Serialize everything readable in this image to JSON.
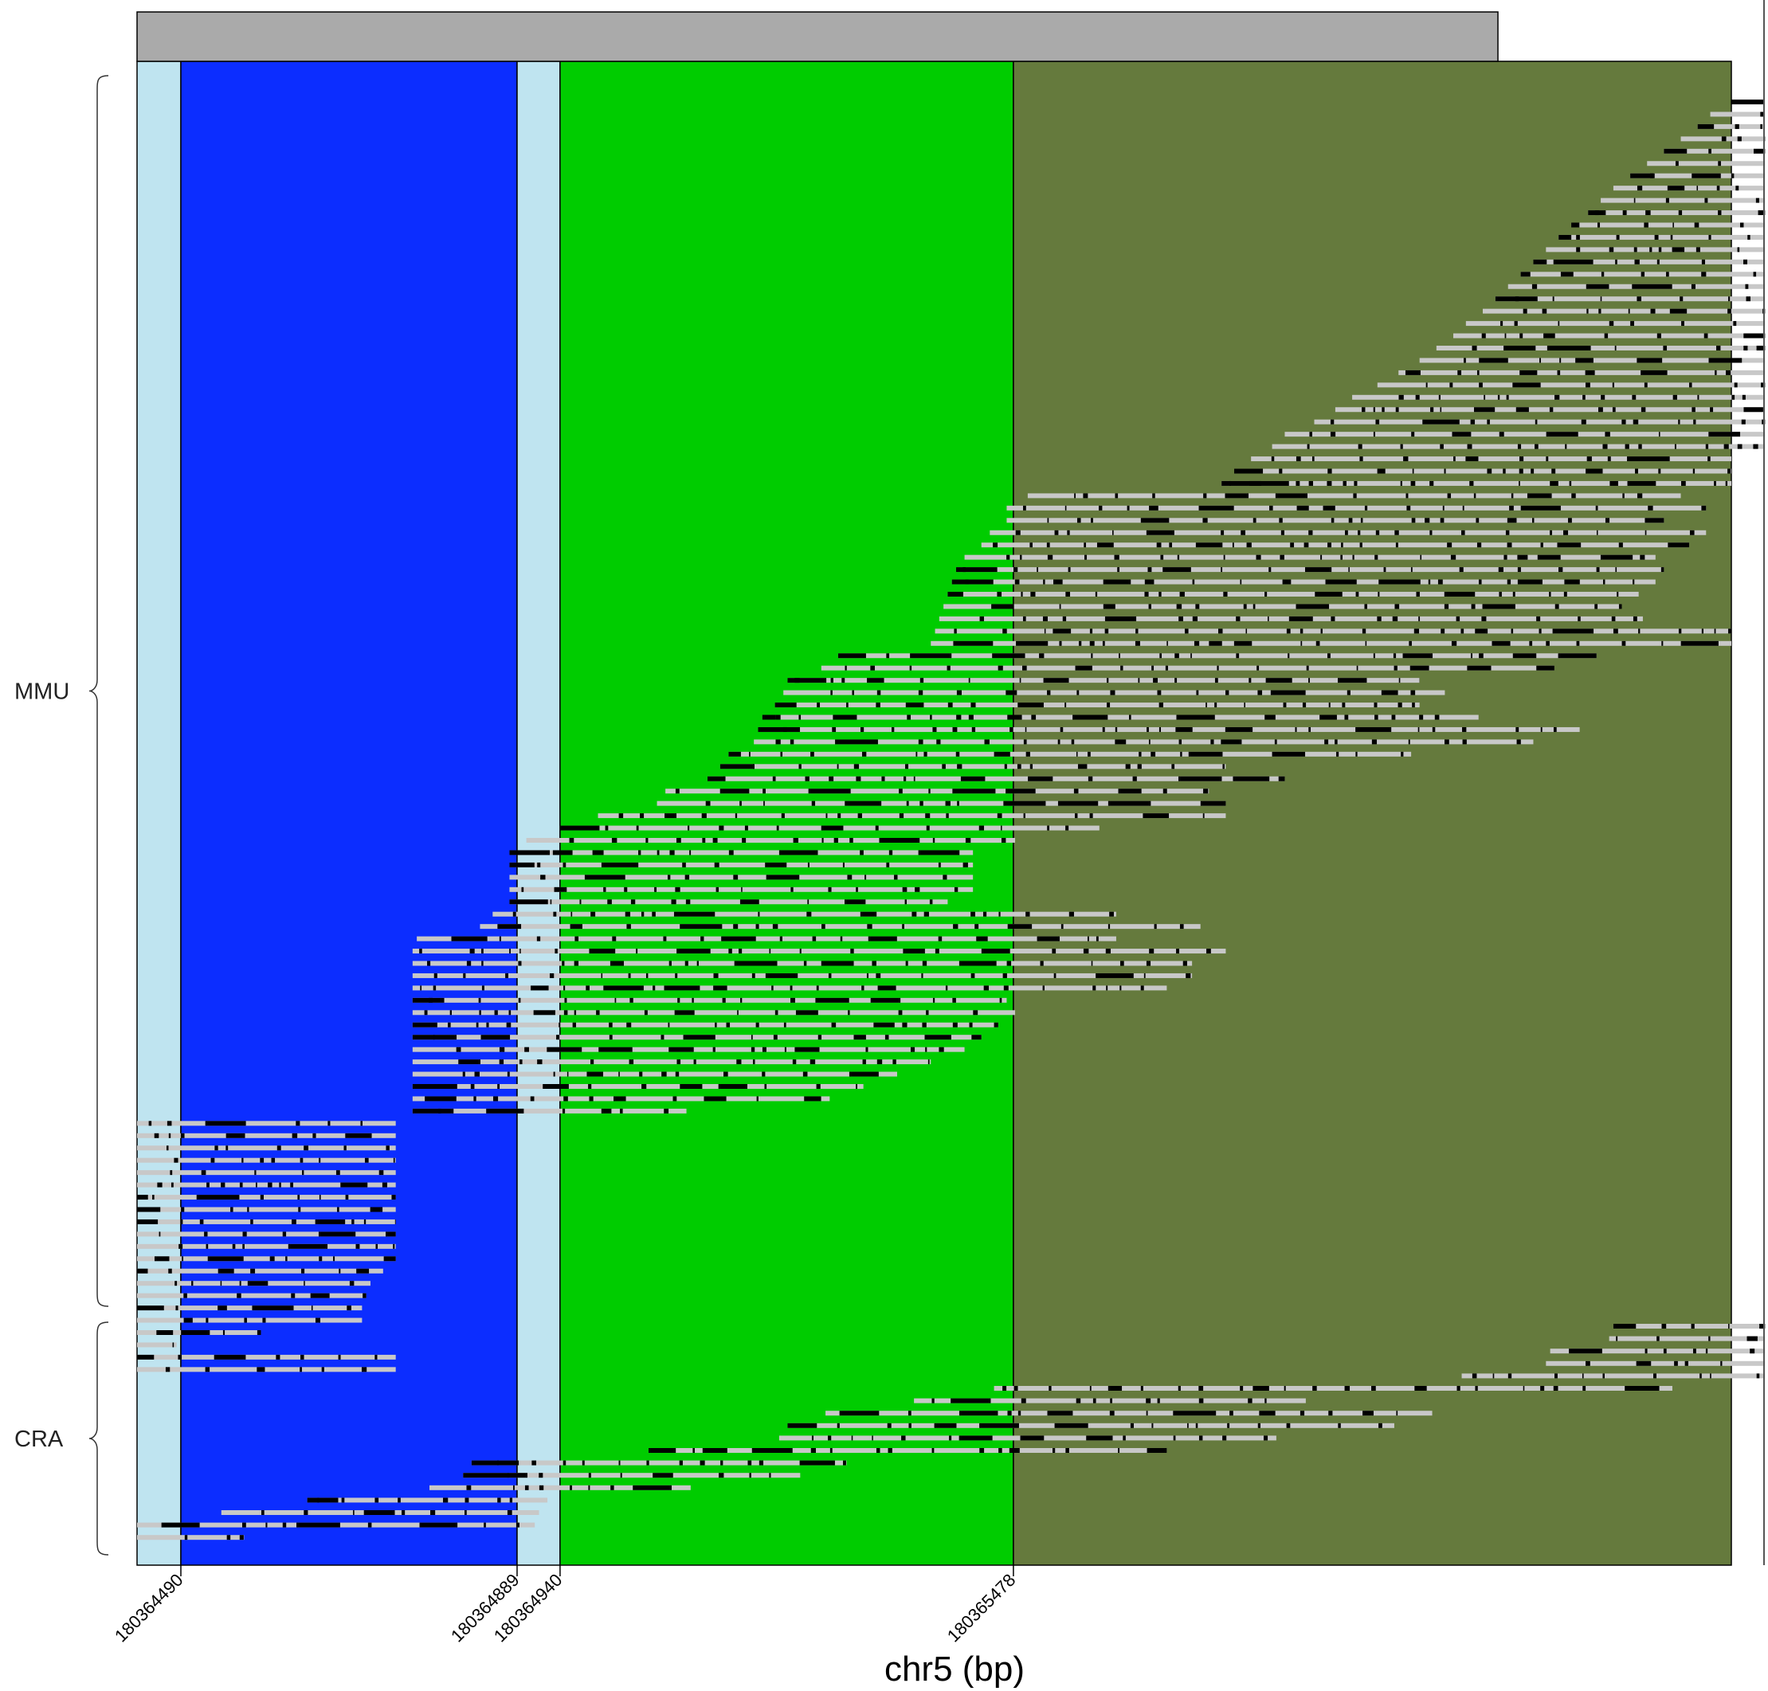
{
  "chart_data": {
    "type": "read-alignment-track",
    "xlabel": "chr5 (bp)",
    "xlim": [
      180364438,
      180366330
    ],
    "feature_bar_end": 180366053,
    "groups": [
      {
        "name": "MMU",
        "rows": 102
      },
      {
        "name": "CRA",
        "rows": 18
      }
    ],
    "regions": [
      {
        "start": 180364438,
        "end": 180364490,
        "color": "#bfe4f0"
      },
      {
        "start": 180364490,
        "end": 180364889,
        "color": "#0c2dff"
      },
      {
        "start": 180364889,
        "end": 180364940,
        "color": "#bfe4f0"
      },
      {
        "start": 180364940,
        "end": 180365478,
        "color": "#00cc00"
      },
      {
        "start": 180365478,
        "end": 180366330,
        "color": "#657a3d"
      }
    ],
    "ticks": [
      {
        "value": 180364490,
        "label": "180364490"
      },
      {
        "value": 180364889,
        "label": "180364889"
      },
      {
        "value": 180364940,
        "label": "180364940"
      },
      {
        "value": 180365478,
        "label": "180365478"
      }
    ],
    "read_colors": {
      "match": "#c8c8c8",
      "gap": "#000000"
    },
    "reads_mmu": [
      [
        180366330,
        180366370
      ],
      [
        180366305,
        180366370
      ],
      [
        180366290,
        180366370
      ],
      [
        180366270,
        180366370
      ],
      [
        180366250,
        180366370
      ],
      [
        180366230,
        180366370
      ],
      [
        180366210,
        180366370
      ],
      [
        180366190,
        180366370
      ],
      [
        180366175,
        180366370
      ],
      [
        180366160,
        180366370
      ],
      [
        180366140,
        180366370
      ],
      [
        180366125,
        180366370
      ],
      [
        180366110,
        180366370
      ],
      [
        180366095,
        180366370
      ],
      [
        180366080,
        180366370
      ],
      [
        180366065,
        180366370
      ],
      [
        180366050,
        180366370
      ],
      [
        180366035,
        180366370
      ],
      [
        180366015,
        180366370
      ],
      [
        180366000,
        180366370
      ],
      [
        180365980,
        180366370
      ],
      [
        180365960,
        180366370
      ],
      [
        180365935,
        180366370
      ],
      [
        180365910,
        180366370
      ],
      [
        180365880,
        180366370
      ],
      [
        180365860,
        180366370
      ],
      [
        180365835,
        180366370
      ],
      [
        180365800,
        180366370
      ],
      [
        180365785,
        180366370
      ],
      [
        180365760,
        180366330
      ],
      [
        180365740,
        180366330
      ],
      [
        180365725,
        180366330
      ],
      [
        180365495,
        180366270
      ],
      [
        180365470,
        180366300
      ],
      [
        180365470,
        180366250
      ],
      [
        180365450,
        180366300
      ],
      [
        180365440,
        180366280
      ],
      [
        180365420,
        180366240
      ],
      [
        180365410,
        180366250
      ],
      [
        180365405,
        180366240
      ],
      [
        180365400,
        180366220
      ],
      [
        180365395,
        180366200
      ],
      [
        180365390,
        180366225
      ],
      [
        180365385,
        180366330
      ],
      [
        180365380,
        180366330
      ],
      [
        180365270,
        180366170
      ],
      [
        180365250,
        180366120
      ],
      [
        180365210,
        180365960
      ],
      [
        180365205,
        180365990
      ],
      [
        180365195,
        180365960
      ],
      [
        180365180,
        180366030
      ],
      [
        180365175,
        180366150
      ],
      [
        180365170,
        180366095
      ],
      [
        180365140,
        180365950
      ],
      [
        180365130,
        180365730
      ],
      [
        180365115,
        180365800
      ],
      [
        180365065,
        180365710
      ],
      [
        180365055,
        180365730
      ],
      [
        180364985,
        180365730
      ],
      [
        180364940,
        180365580
      ],
      [
        180364900,
        180365480
      ],
      [
        180364880,
        180365430
      ],
      [
        180364880,
        180365430
      ],
      [
        180364880,
        180365430
      ],
      [
        180364880,
        180365430
      ],
      [
        180364880,
        180365400
      ],
      [
        180364860,
        180365600
      ],
      [
        180364845,
        180365700
      ],
      [
        180364770,
        180365600
      ],
      [
        180364765,
        180365730
      ],
      [
        180364765,
        180365690
      ],
      [
        180364765,
        180365690
      ],
      [
        180364765,
        180365660
      ],
      [
        180364765,
        180365470
      ],
      [
        180364765,
        180365480
      ],
      [
        180364765,
        180365460
      ],
      [
        180364765,
        180365440
      ],
      [
        180364765,
        180365420
      ],
      [
        180364765,
        180365380
      ],
      [
        180364765,
        180365340
      ],
      [
        180364765,
        180365300
      ],
      [
        180364765,
        180365260
      ],
      [
        180364765,
        180365090
      ],
      [
        180364438,
        180364745
      ],
      [
        180364438,
        180364745
      ],
      [
        180364438,
        180364745
      ],
      [
        180364438,
        180364745
      ],
      [
        180364438,
        180364745
      ],
      [
        180364438,
        180364745
      ],
      [
        180364438,
        180364745
      ],
      [
        180364438,
        180364745
      ],
      [
        180364438,
        180364745
      ],
      [
        180364438,
        180364745
      ],
      [
        180364438,
        180364745
      ],
      [
        180364438,
        180364745
      ],
      [
        180364438,
        180364730
      ],
      [
        180364438,
        180364715
      ],
      [
        180364438,
        180364710
      ],
      [
        180364438,
        180364705
      ],
      [
        180364438,
        180364705
      ],
      [
        180364438,
        180364585
      ],
      [
        180364438,
        180364485
      ],
      [
        180364438,
        180364745
      ],
      [
        180364438,
        180364745
      ]
    ],
    "reads_cra": [
      [
        180366190,
        180366370
      ],
      [
        180366185,
        180366370
      ],
      [
        180366115,
        180366370
      ],
      [
        180366110,
        180366370
      ],
      [
        180366010,
        180366370
      ],
      [
        180365455,
        180366260
      ],
      [
        180365360,
        180365825
      ],
      [
        180365255,
        180365975
      ],
      [
        180365210,
        180365930
      ],
      [
        180365200,
        180365790
      ],
      [
        180365045,
        180365660
      ],
      [
        180364835,
        180365280
      ],
      [
        180364825,
        180365225
      ],
      [
        180364785,
        180365095
      ],
      [
        180364640,
        180364925
      ],
      [
        180364538,
        180364915
      ],
      [
        180364438,
        180364910
      ],
      [
        180364438,
        180364565
      ]
    ]
  }
}
